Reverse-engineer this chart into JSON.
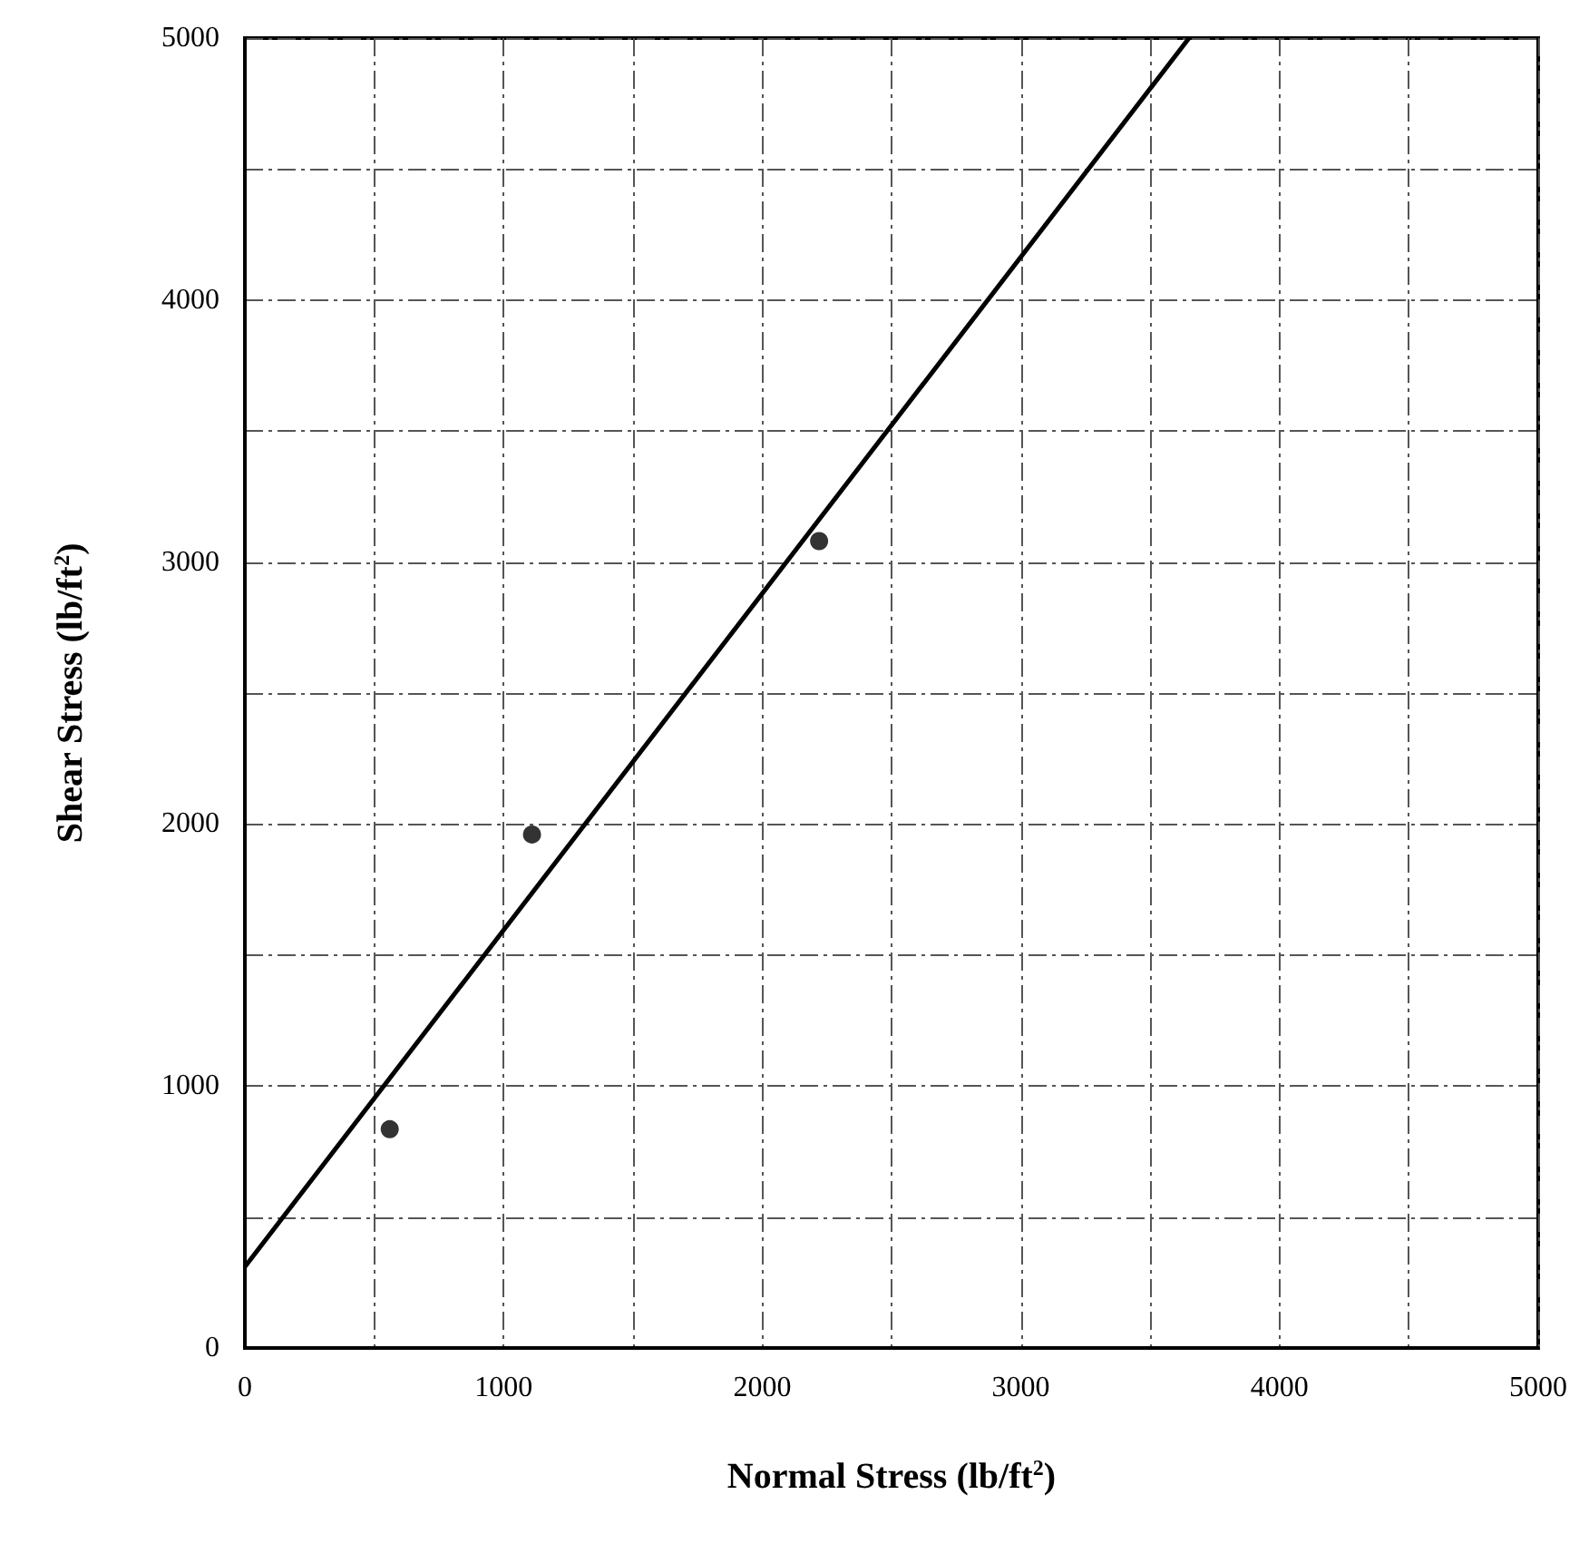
{
  "chart_data": {
    "type": "scatter",
    "xlabel": "Normal Stress (lb/ft$^{2}$)",
    "ylabel": "Shear Stress (lb/ft$^{2}$)",
    "series": [
      {
        "color": "#000000",
        "marker": "circle",
        "x": [
          560,
          1110,
          2220
        ],
        "values": [
          835,
          1960,
          3080
        ]
      },
      {
        "type": "line",
        "color": "#000000",
        "marker": "none",
        "line_style": "solid",
        "x": [
          0,
          3650
        ],
        "values": [
          310,
          5000
        ]
      }
    ],
    "xlim": [
      0,
      5000
    ],
    "ylim": [
      0,
      5000
    ],
    "xticks": [
      0,
      {
        "value": 500,
        "label": null
      },
      1000,
      {
        "value": 1500,
        "label": null
      },
      2000,
      {
        "value": 2500,
        "label": null
      },
      3000,
      {
        "value": 3500,
        "label": null
      },
      4000,
      {
        "value": 4500,
        "label": null
      },
      5000
    ],
    "yticks": [
      0,
      {
        "value": 500,
        "label": null
      },
      1000,
      {
        "value": 1500,
        "label": null
      },
      2000,
      {
        "value": 2500,
        "label": null
      },
      3000,
      {
        "value": 3500,
        "label": null
      },
      4000,
      {
        "value": 4500,
        "label": null
      },
      5000
    ],
    "grid": true
  }
}
